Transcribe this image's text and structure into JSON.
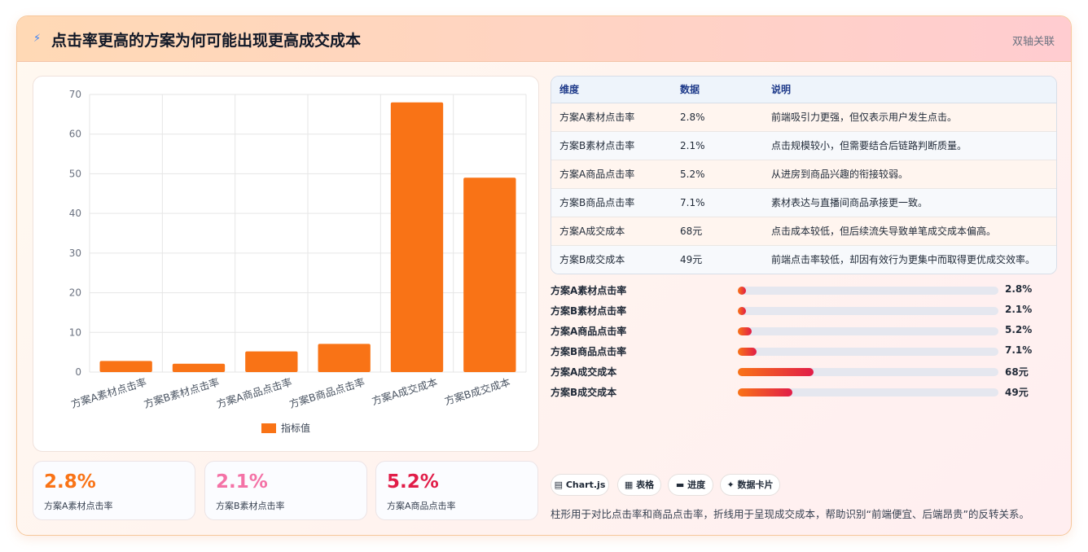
{
  "header": {
    "icon": "lightning-icon",
    "title": "点击率更高的方案为何可能出现更高成交成本",
    "tag": "双轴关联"
  },
  "chart_data": {
    "type": "bar",
    "categories": [
      "方案A素材点击率",
      "方案B素材点击率",
      "方案A商品点击率",
      "方案B商品点击率",
      "方案A成交成本",
      "方案B成交成本"
    ],
    "series": [
      {
        "name": "指标值",
        "values": [
          2.8,
          2.1,
          5.2,
          7.1,
          68,
          49
        ],
        "color": "#f97316"
      }
    ],
    "ylim": [
      0,
      70
    ],
    "yticks": [
      0,
      10,
      20,
      30,
      40,
      50,
      60,
      70
    ],
    "grid": true,
    "legend": "bottom"
  },
  "table": {
    "headers": [
      "维度",
      "数据",
      "说明"
    ],
    "rows": [
      [
        "方案A素材点击率",
        "2.8%",
        "前端吸引力更强，但仅表示用户发生点击。"
      ],
      [
        "方案B素材点击率",
        "2.1%",
        "点击规模较小，但需要结合后链路判断质量。"
      ],
      [
        "方案A商品点击率",
        "5.2%",
        "从进房到商品兴趣的衔接较弱。"
      ],
      [
        "方案B商品点击率",
        "7.1%",
        "素材表达与直播间商品承接更一致。"
      ],
      [
        "方案A成交成本",
        "68元",
        "点击成本较低，但后续流失导致单笔成交成本偏高。"
      ],
      [
        "方案B成交成本",
        "49元",
        "前端点击率较低，却因有效行为更集中而取得更优成交效率。"
      ]
    ]
  },
  "progress": [
    {
      "label": "方案A素材点击率",
      "value": "2.8%",
      "fraction": 0.028
    },
    {
      "label": "方案B素材点击率",
      "value": "2.1%",
      "fraction": 0.021
    },
    {
      "label": "方案A商品点击率",
      "value": "5.2%",
      "fraction": 0.052
    },
    {
      "label": "方案B商品点击率",
      "value": "7.1%",
      "fraction": 0.071
    },
    {
      "label": "方案A成交成本",
      "value": "68元",
      "fraction": 0.29
    },
    {
      "label": "方案B成交成本",
      "value": "49元",
      "fraction": 0.21
    }
  ],
  "stats": [
    {
      "value": "2.8%",
      "label": "方案A素材点击率",
      "color": "#f97316"
    },
    {
      "value": "2.1%",
      "label": "方案B素材点击率",
      "color": "#f472a6"
    },
    {
      "value": "5.2%",
      "label": "方案A商品点击率",
      "color": "#e11d48"
    }
  ],
  "chips": [
    {
      "icon": "chart-icon",
      "glyph": "▤",
      "label": "Chart.js"
    },
    {
      "icon": "table-icon",
      "glyph": "▦",
      "label": "表格"
    },
    {
      "icon": "progress-icon",
      "glyph": "▬",
      "label": "进度"
    },
    {
      "icon": "sparkle-icon",
      "glyph": "✦",
      "label": "数据卡片"
    }
  ],
  "note": "柱形用于对比点击率和商品点击率，折线用于呈现成交成本，帮助识别“前端便宜、后端昂贵”的反转关系。"
}
